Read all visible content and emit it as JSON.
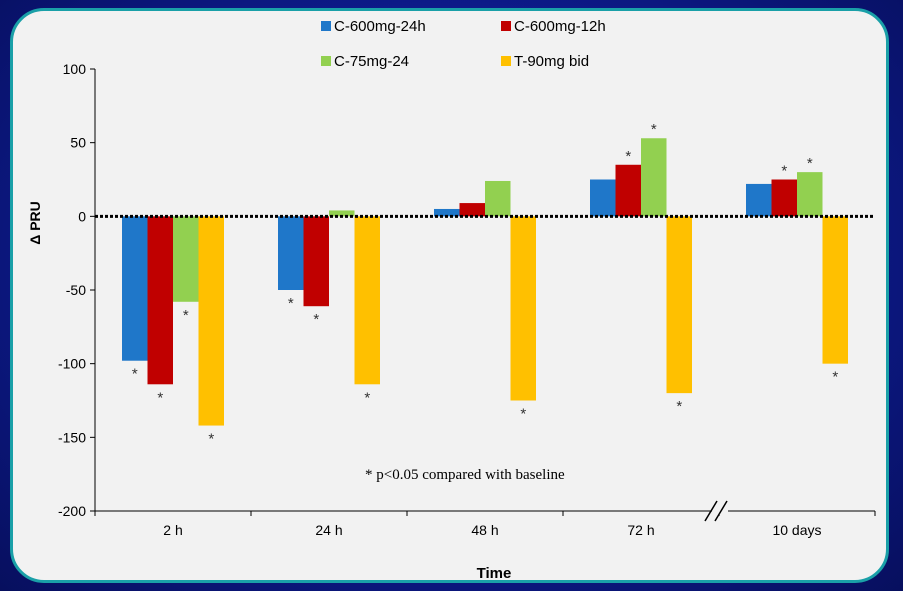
{
  "chart_data": {
    "type": "bar",
    "xlabel": "Time",
    "ylabel": "Δ PRU",
    "ylim": [
      -200,
      100
    ],
    "yticks": [
      100,
      50,
      0,
      -50,
      -100,
      -150,
      -200
    ],
    "categories": [
      "2 h",
      "24 h",
      "48 h",
      "72 h",
      "10 days"
    ],
    "axis_break_between": [
      "72 h",
      "10 days"
    ],
    "series": [
      {
        "name": "C-600mg-24h",
        "color": "#1f77c9",
        "values": [
          -98,
          -50,
          5,
          25,
          22
        ]
      },
      {
        "name": "C-600mg-12h",
        "color": "#c00000",
        "values": [
          -114,
          -61,
          9,
          35,
          25
        ]
      },
      {
        "name": "C-75mg-24",
        "color": "#92d050",
        "values": [
          -58,
          4,
          24,
          53,
          30
        ]
      },
      {
        "name": "T-90mg bid",
        "color": "#ffc000",
        "values": [
          -142,
          -114,
          -125,
          -120,
          -100
        ]
      }
    ],
    "significance": [
      [
        true,
        true,
        false,
        false,
        false
      ],
      [
        true,
        true,
        false,
        true,
        true
      ],
      [
        true,
        false,
        false,
        true,
        true
      ],
      [
        true,
        true,
        true,
        true,
        true
      ]
    ],
    "significance_symbol": "*",
    "annotation": "* p<0.05 compared with baseline",
    "legend_position": "top"
  }
}
